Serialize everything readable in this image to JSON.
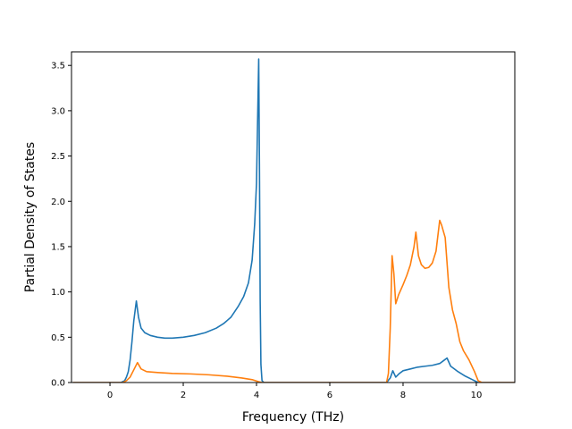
{
  "chart_data": {
    "type": "line",
    "title": "",
    "xlabel": "Frequency (THz)",
    "ylabel": "Partial Density of States",
    "xlim": [
      -1.05,
      11.05
    ],
    "ylim": [
      0,
      3.65
    ],
    "xticks": [
      0,
      2,
      4,
      6,
      8,
      10
    ],
    "yticks": [
      0.0,
      0.5,
      1.0,
      1.5,
      2.0,
      2.5,
      3.0,
      3.5
    ],
    "xtick_labels": [
      "0",
      "2",
      "4",
      "6",
      "8",
      "10"
    ],
    "ytick_labels": [
      "0.0",
      "0.5",
      "1.0",
      "1.5",
      "2.0",
      "2.5",
      "3.0",
      "3.5"
    ],
    "grid": false,
    "legend": "none",
    "series": [
      {
        "color": "#1f77b4",
        "x": [
          -1.0,
          0.3,
          0.4,
          0.45,
          0.5,
          0.55,
          0.6,
          0.65,
          0.72,
          0.78,
          0.85,
          0.95,
          1.1,
          1.3,
          1.5,
          1.7,
          2.0,
          2.3,
          2.6,
          2.9,
          3.1,
          3.3,
          3.5,
          3.65,
          3.78,
          3.88,
          3.95,
          4.0,
          4.03,
          4.06,
          4.08,
          4.1,
          4.12,
          4.15,
          4.2,
          7.55,
          7.65,
          7.72,
          7.8,
          7.9,
          8.0,
          8.2,
          8.4,
          8.6,
          8.8,
          9.0,
          9.1,
          9.2,
          9.3,
          9.5,
          9.7,
          9.9,
          10.0,
          10.05,
          11.05
        ],
        "y": [
          0.0,
          0.0,
          0.02,
          0.06,
          0.12,
          0.25,
          0.45,
          0.68,
          0.9,
          0.72,
          0.6,
          0.55,
          0.52,
          0.5,
          0.49,
          0.49,
          0.5,
          0.52,
          0.55,
          0.6,
          0.65,
          0.72,
          0.84,
          0.95,
          1.1,
          1.35,
          1.75,
          2.2,
          2.9,
          3.57,
          2.4,
          0.9,
          0.2,
          0.02,
          0.0,
          0.0,
          0.05,
          0.13,
          0.06,
          0.1,
          0.13,
          0.15,
          0.17,
          0.18,
          0.19,
          0.21,
          0.24,
          0.27,
          0.18,
          0.12,
          0.07,
          0.03,
          0.01,
          0.0,
          0.0
        ]
      },
      {
        "color": "#ff7f0e",
        "x": [
          -1.0,
          0.35,
          0.45,
          0.55,
          0.65,
          0.75,
          0.85,
          1.0,
          1.3,
          1.7,
          2.2,
          2.7,
          3.2,
          3.6,
          3.9,
          4.05,
          4.15,
          4.25,
          7.55,
          7.6,
          7.65,
          7.7,
          7.75,
          7.8,
          7.88,
          8.0,
          8.1,
          8.2,
          8.3,
          8.35,
          8.42,
          8.5,
          8.6,
          8.7,
          8.8,
          8.9,
          9.0,
          9.05,
          9.15,
          9.25,
          9.35,
          9.45,
          9.55,
          9.65,
          9.8,
          9.95,
          10.05,
          10.15,
          11.05
        ],
        "y": [
          0.0,
          0.0,
          0.02,
          0.06,
          0.14,
          0.22,
          0.15,
          0.12,
          0.11,
          0.1,
          0.095,
          0.085,
          0.07,
          0.05,
          0.03,
          0.01,
          0.0,
          0.0,
          0.0,
          0.1,
          0.6,
          1.4,
          1.2,
          0.87,
          0.97,
          1.08,
          1.18,
          1.3,
          1.5,
          1.66,
          1.4,
          1.3,
          1.26,
          1.27,
          1.32,
          1.45,
          1.79,
          1.74,
          1.6,
          1.05,
          0.8,
          0.65,
          0.45,
          0.35,
          0.25,
          0.12,
          0.02,
          0.0,
          0.0
        ]
      }
    ]
  }
}
